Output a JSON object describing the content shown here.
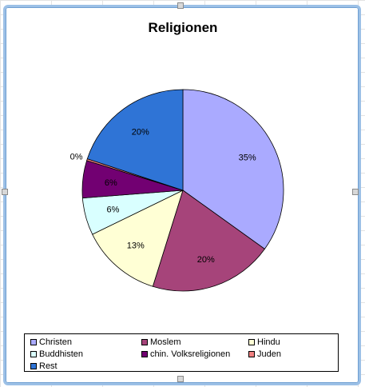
{
  "chart_data": {
    "type": "pie",
    "title": "Religionen",
    "categories": [
      "Christen",
      "Moslem",
      "Hindu",
      "Buddhisten",
      "chin. Volksreligionen",
      "Juden",
      "Rest"
    ],
    "values": [
      35,
      20,
      13,
      6,
      6,
      0.3,
      20
    ],
    "labels": [
      "35%",
      "20%",
      "13%",
      "6%",
      "6%",
      "0%",
      "20%"
    ],
    "colors": [
      "#aaaaff",
      "#a6447a",
      "#ffffd5",
      "#d9ffff",
      "#720072",
      "#f08080",
      "#2f74d6"
    ],
    "start_angle_deg": 0,
    "direction": "clockwise",
    "legend_position": "bottom"
  }
}
